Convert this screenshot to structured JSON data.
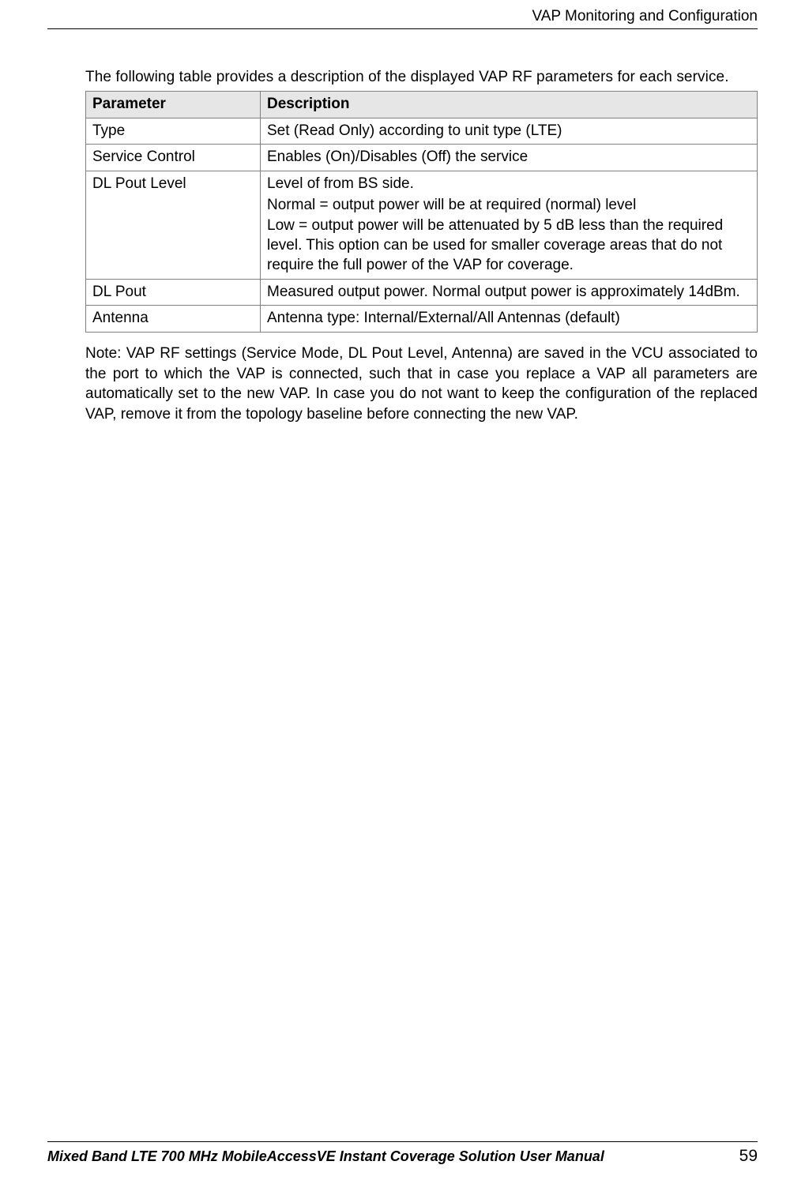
{
  "header": {
    "section_title": "VAP Monitoring and Configuration"
  },
  "content": {
    "intro": "The following table provides a description of the displayed VAP RF parameters for each service.",
    "table": {
      "header_bg": "#e6e6e6",
      "border_color": "#808080",
      "columns": [
        "Parameter",
        "Description"
      ],
      "rows": [
        {
          "param": "Type",
          "desc": [
            "Set (Read Only) according to unit type (LTE)"
          ]
        },
        {
          "param": "Service Control",
          "desc": [
            "Enables (On)/Disables (Off) the service"
          ]
        },
        {
          "param": "DL Pout Level",
          "desc": [
            "Level of from BS side.",
            "Normal = output power will be at required (normal) level",
            "Low = output power will be attenuated by 5 dB less than the required level.  This option can be used for smaller coverage areas that do not require the full power of the VAP for coverage."
          ]
        },
        {
          "param": "DL Pout",
          "desc": [
            "Measured output power. Normal output power is approximately 14dBm."
          ]
        },
        {
          "param": "Antenna",
          "desc": [
            "Antenna type: Internal/External/All Antennas (default)"
          ]
        }
      ]
    },
    "note": "Note: VAP RF settings (Service Mode, DL Pout Level, Antenna) are saved in the VCU associated to the port to which the VAP is connected, such that in case you replace a VAP all parameters are automatically set to the new VAP. In case you do not want to keep the configuration of the replaced VAP, remove it from the topology baseline before connecting the new VAP."
  },
  "footer": {
    "title": "Mixed Band LTE 700 MHz MobileAccessVE Instant Coverage Solution User Manual",
    "page": "59"
  }
}
